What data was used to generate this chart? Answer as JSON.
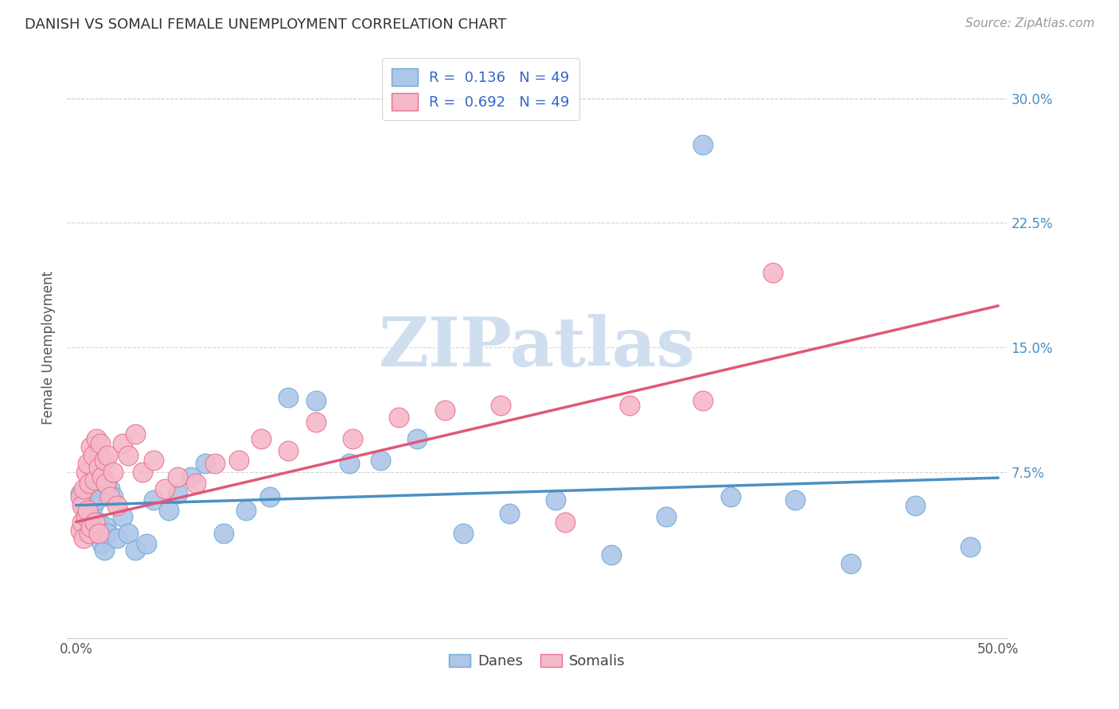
{
  "title": "DANISH VS SOMALI FEMALE UNEMPLOYMENT CORRELATION CHART",
  "source": "Source: ZipAtlas.com",
  "ylabel": "Female Unemployment",
  "xlabel": "",
  "xlim": [
    -0.005,
    0.505
  ],
  "ylim": [
    -0.025,
    0.325
  ],
  "xtick_vals": [
    0.0,
    0.1,
    0.2,
    0.3,
    0.4,
    0.5
  ],
  "xtick_labels": [
    "0.0%",
    "",
    "",
    "",
    "",
    "50.0%"
  ],
  "ytick_vals": [
    0.075,
    0.15,
    0.225,
    0.3
  ],
  "ytick_labels": [
    "7.5%",
    "15.0%",
    "22.5%",
    "30.0%"
  ],
  "danes_R": "0.136",
  "danes_N": "49",
  "somalis_R": "0.692",
  "somalis_N": "49",
  "danes_color": "#aec6e8",
  "somalis_color": "#f5b8c8",
  "danes_edge_color": "#6aaad4",
  "somalis_edge_color": "#e87090",
  "danes_line_color": "#4a90c4",
  "somalis_line_color": "#e05878",
  "legend_text_color": "#3366cc",
  "watermark_text": "ZIPatlas",
  "watermark_color": "#d0dff0",
  "background_color": "#ffffff",
  "grid_color": "#cccccc",
  "title_color": "#333333",
  "source_color": "#999999",
  "ylabel_color": "#555555",
  "tick_color": "#555555",
  "danes_line_b0": 0.055,
  "danes_line_b1": 0.033,
  "somalis_line_b0": 0.045,
  "somalis_line_b1": 0.26,
  "danes_x": [
    0.002,
    0.003,
    0.004,
    0.005,
    0.006,
    0.007,
    0.007,
    0.008,
    0.009,
    0.01,
    0.01,
    0.011,
    0.012,
    0.013,
    0.014,
    0.015,
    0.016,
    0.017,
    0.018,
    0.02,
    0.022,
    0.025,
    0.028,
    0.032,
    0.038,
    0.042,
    0.05,
    0.055,
    0.062,
    0.07,
    0.08,
    0.092,
    0.105,
    0.115,
    0.13,
    0.148,
    0.165,
    0.185,
    0.21,
    0.235,
    0.26,
    0.29,
    0.32,
    0.355,
    0.39,
    0.42,
    0.455,
    0.485,
    0.34
  ],
  "danes_y": [
    0.062,
    0.058,
    0.055,
    0.048,
    0.052,
    0.06,
    0.045,
    0.05,
    0.055,
    0.04,
    0.068,
    0.058,
    0.045,
    0.038,
    0.032,
    0.028,
    0.042,
    0.038,
    0.065,
    0.06,
    0.035,
    0.048,
    0.038,
    0.028,
    0.032,
    0.058,
    0.052,
    0.062,
    0.072,
    0.08,
    0.038,
    0.052,
    0.06,
    0.12,
    0.118,
    0.08,
    0.082,
    0.095,
    0.038,
    0.05,
    0.058,
    0.025,
    0.048,
    0.06,
    0.058,
    0.02,
    0.055,
    0.03,
    0.272
  ],
  "somalis_x": [
    0.002,
    0.003,
    0.004,
    0.005,
    0.006,
    0.007,
    0.008,
    0.009,
    0.01,
    0.011,
    0.012,
    0.013,
    0.014,
    0.015,
    0.016,
    0.017,
    0.018,
    0.02,
    0.022,
    0.025,
    0.028,
    0.032,
    0.036,
    0.042,
    0.048,
    0.055,
    0.065,
    0.075,
    0.088,
    0.1,
    0.115,
    0.13,
    0.15,
    0.175,
    0.2,
    0.23,
    0.265,
    0.3,
    0.34,
    0.378,
    0.002,
    0.003,
    0.004,
    0.005,
    0.006,
    0.007,
    0.008,
    0.01,
    0.012
  ],
  "somalis_y": [
    0.06,
    0.055,
    0.065,
    0.075,
    0.08,
    0.068,
    0.09,
    0.085,
    0.07,
    0.095,
    0.078,
    0.092,
    0.072,
    0.082,
    0.068,
    0.085,
    0.06,
    0.075,
    0.055,
    0.092,
    0.085,
    0.098,
    0.075,
    0.082,
    0.065,
    0.072,
    0.068,
    0.08,
    0.082,
    0.095,
    0.088,
    0.105,
    0.095,
    0.108,
    0.112,
    0.115,
    0.045,
    0.115,
    0.118,
    0.195,
    0.04,
    0.045,
    0.035,
    0.048,
    0.052,
    0.038,
    0.042,
    0.045,
    0.038
  ]
}
